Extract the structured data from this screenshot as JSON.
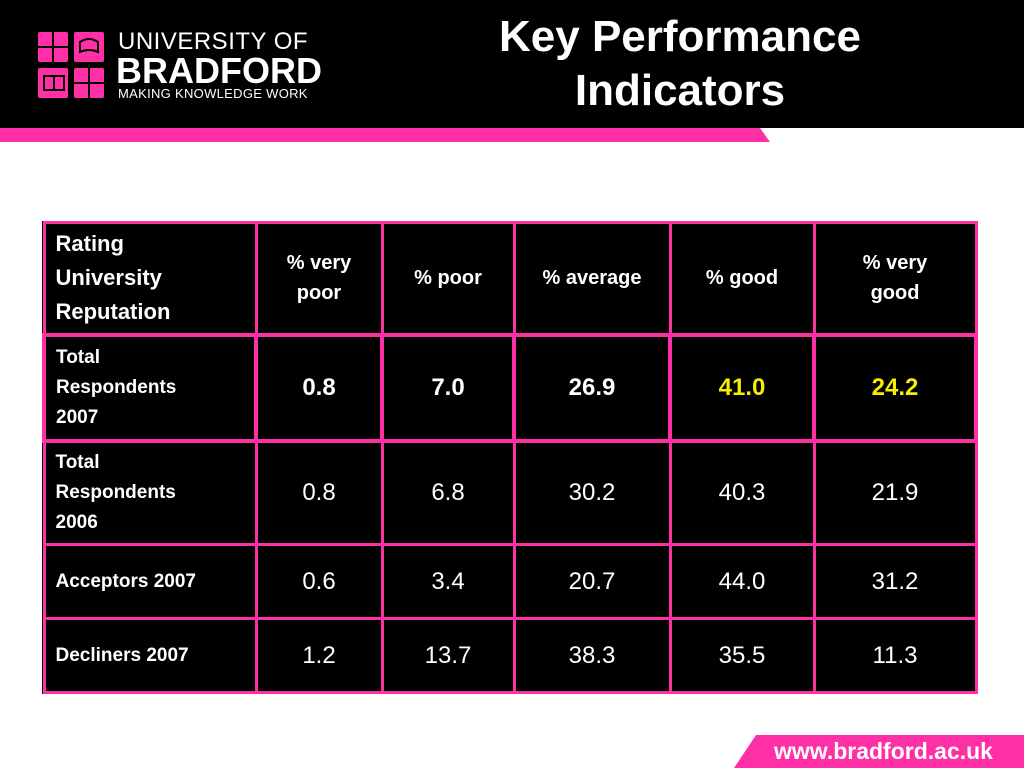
{
  "logo": {
    "line1": "UNIVERSITY OF",
    "line2": "BRADFORD",
    "line3": "MAKING KNOWLEDGE WORK",
    "icon": "university-crest-icon"
  },
  "title": {
    "line1": "Key Performance",
    "line2": "Indicators"
  },
  "table": {
    "header": {
      "corner": [
        "Rating",
        "University",
        "Reputation"
      ],
      "cols": [
        [
          "% very",
          "poor"
        ],
        [
          "% poor"
        ],
        [
          "% average"
        ],
        [
          "% good"
        ],
        [
          "% very",
          "good"
        ]
      ]
    },
    "rows": [
      {
        "label": [
          "Total",
          "Respondents",
          "2007"
        ],
        "values": [
          "0.8",
          "7.0",
          "26.9",
          "41.0",
          "24.2"
        ]
      },
      {
        "label": [
          "Total",
          "Respondents",
          "2006"
        ],
        "values": [
          "0.8",
          "6.8",
          "30.2",
          "40.3",
          "21.9"
        ]
      },
      {
        "label": [
          "Acceptors 2007"
        ],
        "values": [
          "0.6",
          "3.4",
          "20.7",
          "44.0",
          "31.2"
        ]
      },
      {
        "label": [
          "Decliners 2007"
        ],
        "values": [
          "1.2",
          "13.7",
          "38.3",
          "35.5",
          "11.3"
        ]
      }
    ]
  },
  "footer": {
    "url": "www.bradford.ac.uk"
  },
  "colors": {
    "accent": "#ff2fa6",
    "highlight": "#f5ee00",
    "background": "#000000"
  }
}
